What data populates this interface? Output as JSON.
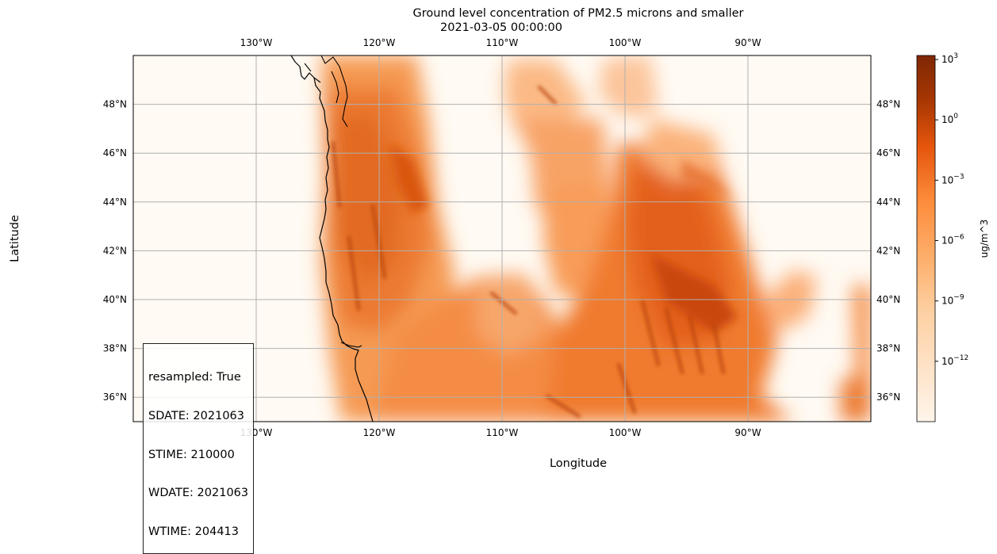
{
  "chart_data": {
    "type": "heatmap",
    "title": "Ground level concentration of PM2.5 microns and smaller",
    "subtitle": "2021-03-05 00:00:00",
    "xlabel": "Longitude",
    "ylabel": "Latitude",
    "x_range_deg": [
      -140,
      -80
    ],
    "y_range_deg": [
      35,
      50
    ],
    "x_ticks": [
      {
        "value": -130,
        "label": "130°W"
      },
      {
        "value": -120,
        "label": "120°W"
      },
      {
        "value": -110,
        "label": "110°W"
      },
      {
        "value": -100,
        "label": "100°W"
      },
      {
        "value": -90,
        "label": "90°W"
      }
    ],
    "y_ticks": [
      {
        "value": 36,
        "label": "36°N"
      },
      {
        "value": 38,
        "label": "38°N"
      },
      {
        "value": 40,
        "label": "40°N"
      },
      {
        "value": 42,
        "label": "42°N"
      },
      {
        "value": 44,
        "label": "44°N"
      },
      {
        "value": 46,
        "label": "46°N"
      },
      {
        "value": 48,
        "label": "48°N"
      }
    ],
    "grid": true,
    "colormap": "Oranges",
    "colorbar": {
      "label": "ug/m^3",
      "scale": "log",
      "range_exp": [
        -15,
        3.2
      ],
      "ticks": [
        {
          "exp": 3,
          "label": "10^3"
        },
        {
          "exp": 0,
          "label": "10^0"
        },
        {
          "exp": -3,
          "label": "10^-3"
        },
        {
          "exp": -6,
          "label": "10^-6"
        },
        {
          "exp": -9,
          "label": "10^-9"
        },
        {
          "exp": -12,
          "label": "10^-12"
        }
      ]
    },
    "annotation_lines": [
      "resampled: True",
      "SDATE: 2021063",
      "STIME: 210000",
      "WDATE: 2021063",
      "WTIME: 204413"
    ],
    "colors": {
      "low": "#fff5eb",
      "mid": "#fd8d3c",
      "high": "#7f2704",
      "grid": "#b0b0b0",
      "coast": "#000000"
    }
  }
}
